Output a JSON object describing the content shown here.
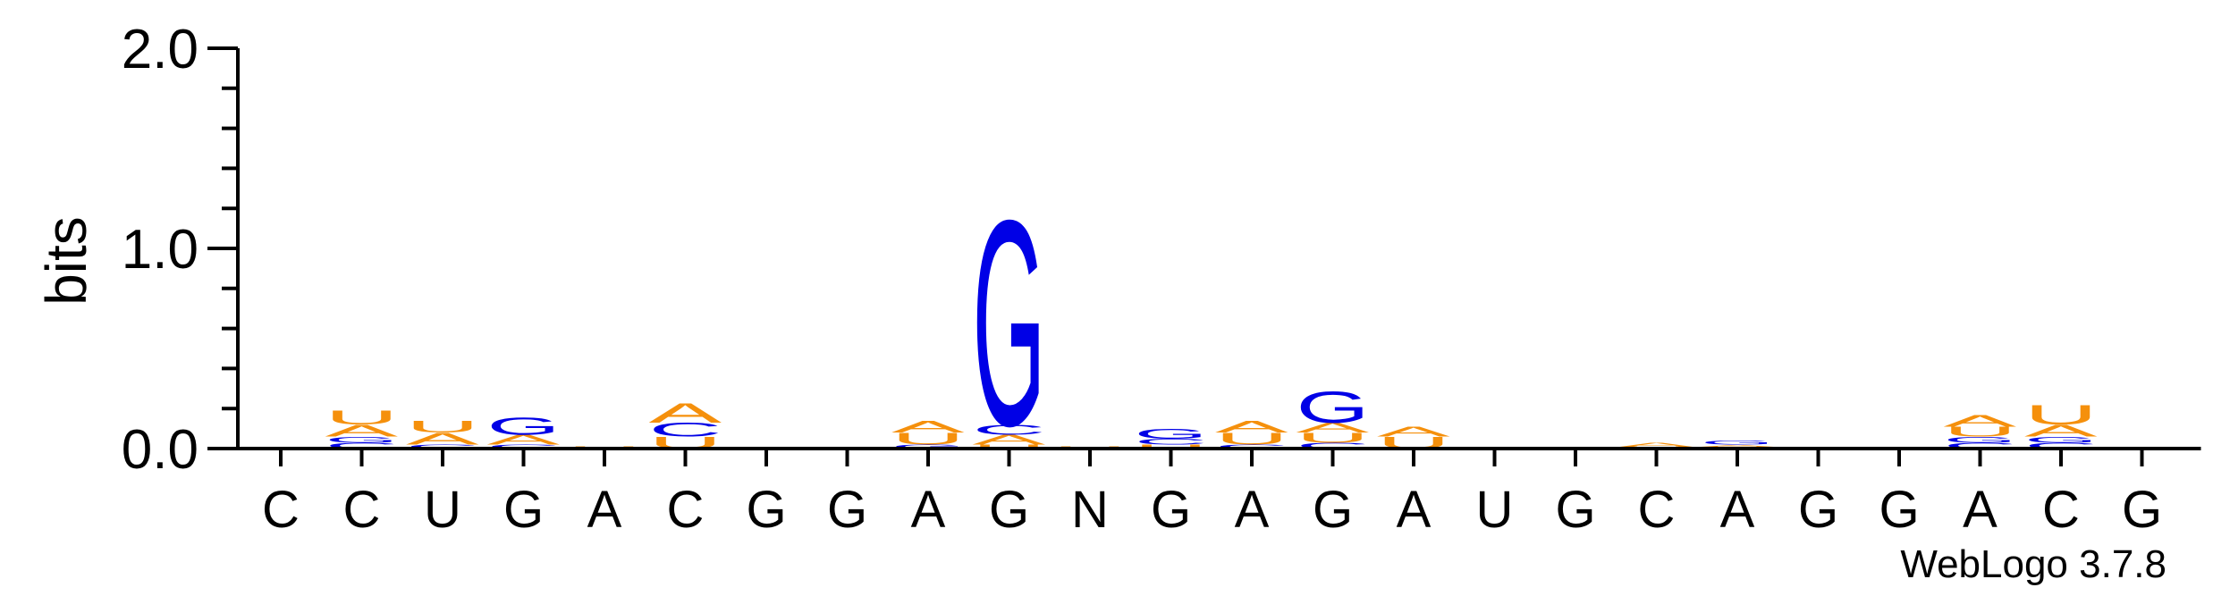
{
  "chart_data": {
    "type": "sequence-logo",
    "ylabel": "bits",
    "ylim": [
      0,
      2.0
    ],
    "yticks": [
      "0.0",
      "1.0",
      "2.0"
    ],
    "footer": "WebLogo 3.7.8",
    "colors": {
      "A": "#f5900c",
      "U": "#f5900c",
      "G": "#0000e6",
      "C": "#0000e6"
    },
    "positions": [
      {
        "label": "C",
        "stack": []
      },
      {
        "label": "C",
        "stack": [
          {
            "letter": "C",
            "height": 0.03
          },
          {
            "letter": "G",
            "height": 0.03
          },
          {
            "letter": "A",
            "height": 0.06
          },
          {
            "letter": "U",
            "height": 0.07
          }
        ]
      },
      {
        "label": "U",
        "stack": [
          {
            "letter": "C",
            "height": 0.02
          },
          {
            "letter": "A",
            "height": 0.06
          },
          {
            "letter": "U",
            "height": 0.06
          }
        ]
      },
      {
        "label": "G",
        "stack": [
          {
            "letter": "C",
            "height": 0.02
          },
          {
            "letter": "A",
            "height": 0.05
          },
          {
            "letter": "G",
            "height": 0.09
          }
        ]
      },
      {
        "label": "A",
        "stack": [
          {
            "letter": "U",
            "height": 0.01
          }
        ]
      },
      {
        "label": "C",
        "stack": [
          {
            "letter": "U",
            "height": 0.06
          },
          {
            "letter": "C",
            "height": 0.07
          },
          {
            "letter": "A",
            "height": 0.1
          }
        ]
      },
      {
        "label": "G",
        "stack": []
      },
      {
        "label": "G",
        "stack": []
      },
      {
        "label": "A",
        "stack": [
          {
            "letter": "G",
            "height": 0.02
          },
          {
            "letter": "U",
            "height": 0.06
          },
          {
            "letter": "A",
            "height": 0.06
          }
        ]
      },
      {
        "label": "G",
        "stack": [
          {
            "letter": "U",
            "height": 0.02
          },
          {
            "letter": "A",
            "height": 0.05
          },
          {
            "letter": "C",
            "height": 0.05
          },
          {
            "letter": "G",
            "height": 1.05
          }
        ]
      },
      {
        "label": "N",
        "stack": [
          {
            "letter": "U",
            "height": 0.01
          }
        ]
      },
      {
        "label": "G",
        "stack": [
          {
            "letter": "U",
            "height": 0.02
          },
          {
            "letter": "C",
            "height": 0.03
          },
          {
            "letter": "G",
            "height": 0.05
          }
        ]
      },
      {
        "label": "A",
        "stack": [
          {
            "letter": "C",
            "height": 0.02
          },
          {
            "letter": "U",
            "height": 0.06
          },
          {
            "letter": "A",
            "height": 0.06
          }
        ]
      },
      {
        "label": "G",
        "stack": [
          {
            "letter": "C",
            "height": 0.03
          },
          {
            "letter": "U",
            "height": 0.05
          },
          {
            "letter": "A",
            "height": 0.05
          },
          {
            "letter": "G",
            "height": 0.16
          }
        ]
      },
      {
        "label": "A",
        "stack": [
          {
            "letter": "U",
            "height": 0.06
          },
          {
            "letter": "A",
            "height": 0.05
          }
        ]
      },
      {
        "label": "U",
        "stack": []
      },
      {
        "label": "G",
        "stack": [
          {
            "letter": "A",
            "height": 0.01
          }
        ]
      },
      {
        "label": "C",
        "stack": [
          {
            "letter": "U",
            "height": 0.01
          },
          {
            "letter": "A",
            "height": 0.02
          }
        ]
      },
      {
        "label": "A",
        "stack": [
          {
            "letter": "U",
            "height": 0.01
          },
          {
            "letter": "A",
            "height": 0.01
          },
          {
            "letter": "G",
            "height": 0.02
          }
        ]
      },
      {
        "label": "G",
        "stack": []
      },
      {
        "label": "G",
        "stack": []
      },
      {
        "label": "A",
        "stack": [
          {
            "letter": "C",
            "height": 0.03
          },
          {
            "letter": "G",
            "height": 0.03
          },
          {
            "letter": "U",
            "height": 0.05
          },
          {
            "letter": "A",
            "height": 0.06
          }
        ]
      },
      {
        "label": "C",
        "stack": [
          {
            "letter": "C",
            "height": 0.03
          },
          {
            "letter": "G",
            "height": 0.03
          },
          {
            "letter": "A",
            "height": 0.06
          },
          {
            "letter": "U",
            "height": 0.1
          }
        ]
      },
      {
        "label": "G",
        "stack": []
      }
    ]
  }
}
